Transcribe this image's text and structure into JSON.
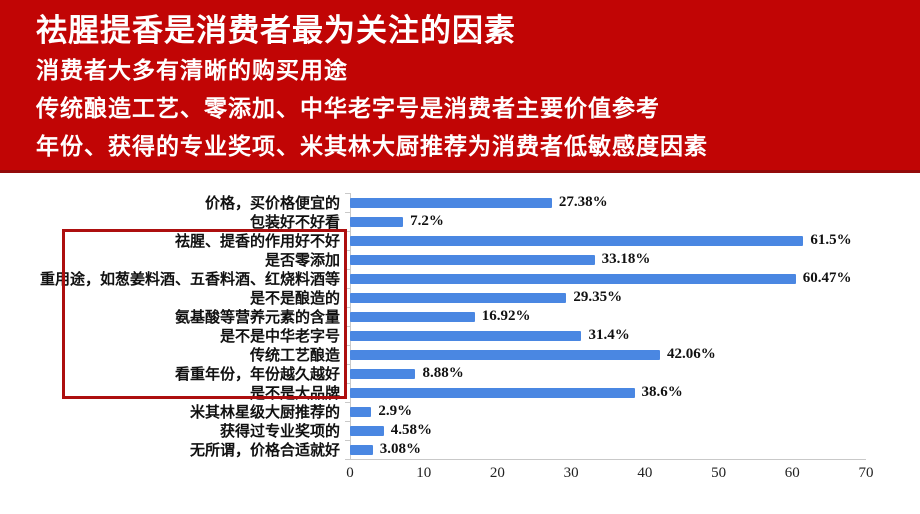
{
  "banner": {
    "bg_color": "#c10505",
    "text_color": "#ffffff",
    "title": "祛腥提香是消费者最为关注的因素",
    "subtitles": [
      "消费者大多有清晰的购买用途",
      "传统酿造工艺、零添加、中华老字号是消费者主要价值参考",
      "年份、获得的专业奖项、米其林大厨推荐为消费者低敏感度因素"
    ]
  },
  "chart_data": {
    "type": "bar",
    "orientation": "horizontal",
    "title": "",
    "xlabel": "",
    "ylabel": "",
    "grid": false,
    "legend": null,
    "categories": [
      "价格，买价格便宜的",
      "包装好不好看",
      "祛腥、提香的作用好不好",
      "是否零添加",
      "重用途，如葱姜料酒、五香料酒、红烧料酒等",
      "是不是酿造的",
      "氨基酸等营养元素的含量",
      "是不是中华老字号",
      "传统工艺酿造",
      "看重年份，年份越久越好",
      "是不是大品牌",
      "米其林星级大厨推荐的",
      "获得过专业奖项的",
      "无所谓，价格合适就好"
    ],
    "values": [
      27.38,
      7.2,
      61.5,
      33.18,
      60.47,
      29.35,
      16.92,
      31.4,
      42.06,
      8.88,
      38.6,
      2.9,
      4.58,
      3.08
    ],
    "value_labels": [
      "27.38%",
      "7.2%",
      "61.5%",
      "33.18%",
      "60.47%",
      "29.35%",
      "16.92%",
      "31.4%",
      "42.06%",
      "8.88%",
      "38.6%",
      "2.9%",
      "4.58%",
      "3.08%"
    ],
    "xlim": [
      0,
      70
    ],
    "x_ticks": [
      0,
      10,
      20,
      30,
      40,
      50,
      60,
      70
    ],
    "bar_color": "#4a87e2",
    "highlight_box": {
      "first_row": 2,
      "last_row": 10,
      "border_color": "#ad0f0f"
    }
  }
}
